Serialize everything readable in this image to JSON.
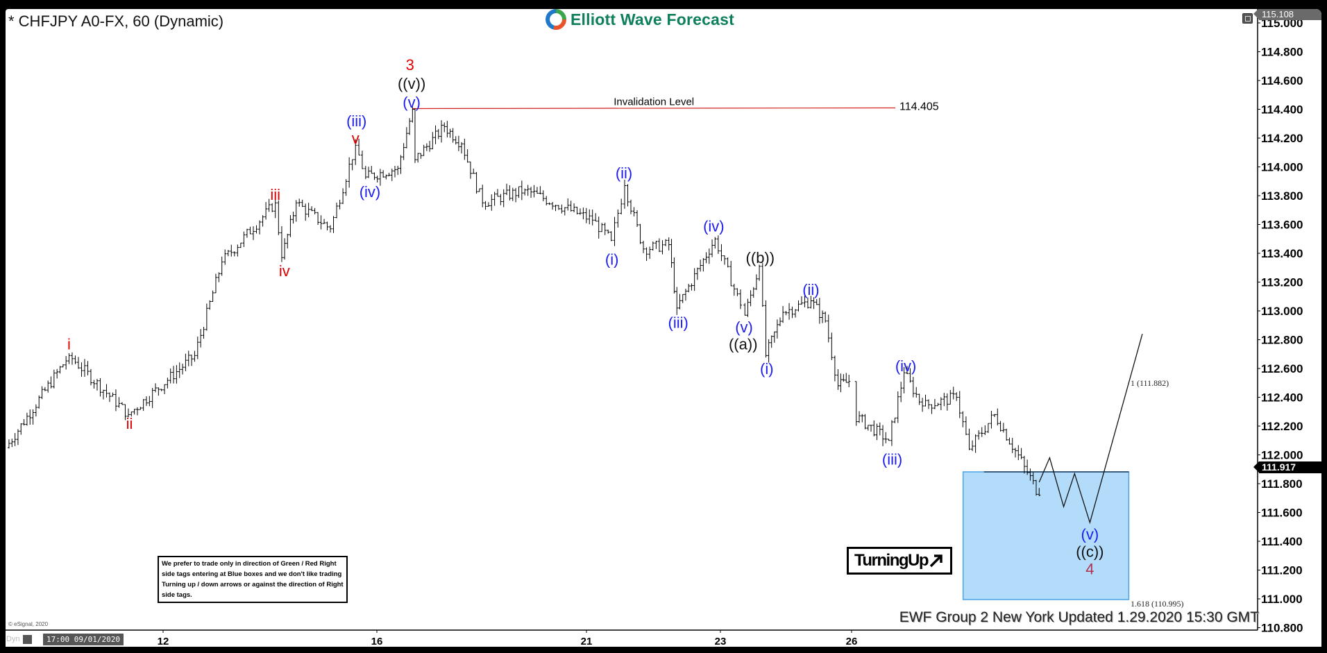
{
  "header": {
    "title": "* CHFJPY A0-FX, 60 (Dynamic)",
    "logo_text": "Elliott Wave Forecast"
  },
  "note": "We prefer to trade only in direction of Green / Red Right side tags entering at Blue boxes and we don't like trading Turning up / down arrows or against the direction of Right side tags.",
  "turning_label": "TurningUp",
  "updated": "EWF Group 2 New York Updated 1.29.2020 15:30 GMT",
  "copyright": "© eSignal, 2020",
  "footer": {
    "dyn": "Dyn",
    "cursor_time": "17:00 09/01/2020"
  },
  "chart_data": {
    "type": "ohlc",
    "symbol": "CHFJPY",
    "interval": "60",
    "ylim": [
      110.8,
      115.0
    ],
    "y_ticks": [
      "115.000",
      "114.800",
      "114.600",
      "114.400",
      "114.200",
      "114.000",
      "113.800",
      "113.600",
      "113.400",
      "113.200",
      "113.000",
      "112.800",
      "112.600",
      "112.400",
      "112.200",
      "112.000",
      "111.800",
      "111.600",
      "111.400",
      "111.200",
      "111.000",
      "110.800"
    ],
    "x_ticks": [
      {
        "label": "12",
        "day": 12
      },
      {
        "label": "16",
        "day": 16
      },
      {
        "label": "21",
        "day": 21
      },
      {
        "label": "23",
        "day": 23
      },
      {
        "label": "26",
        "day": 26
      }
    ],
    "price_path": [
      [
        9.06,
        112.05
      ],
      [
        10.24,
        112.69
      ],
      [
        11.35,
        112.28
      ],
      [
        12.59,
        112.69
      ],
      [
        13.1,
        113.34
      ],
      [
        14.1,
        113.75
      ],
      [
        14.22,
        113.37
      ],
      [
        14.49,
        113.75
      ],
      [
        15.13,
        113.57
      ],
      [
        15.6,
        114.15
      ],
      [
        15.79,
        113.93
      ],
      [
        16.5,
        113.99
      ],
      [
        16.85,
        114.4
      ],
      [
        16.91,
        114.05
      ],
      [
        17.61,
        114.28
      ],
      [
        18.02,
        114.16
      ],
      [
        18.52,
        113.75
      ],
      [
        19.53,
        113.84
      ],
      [
        21.09,
        113.63
      ],
      [
        21.37,
        113.49
      ],
      [
        21.57,
        113.87
      ],
      [
        21.85,
        113.43
      ],
      [
        22.23,
        113.46
      ],
      [
        22.35,
        113.02
      ],
      [
        22.92,
        113.5
      ],
      [
        23.46,
        113.04
      ],
      [
        23.56,
        112.97
      ],
      [
        23.89,
        113.31
      ],
      [
        24.04,
        112.69
      ],
      [
        24.43,
        112.99
      ],
      [
        25.07,
        113.07
      ],
      [
        25.4,
        112.93
      ],
      [
        25.69,
        112.48
      ],
      [
        25.94,
        112.51
      ],
      [
        26.04,
        112.28
      ],
      [
        26.85,
        112.1
      ],
      [
        27.2,
        112.57
      ],
      [
        27.62,
        112.34
      ],
      [
        28.4,
        112.4
      ],
      [
        28.69,
        112.04
      ],
      [
        29.27,
        112.28
      ],
      [
        29.95,
        111.92
      ],
      [
        30.29,
        111.72
      ]
    ],
    "weekend_gap": [
      25.94,
      26.04
    ],
    "projection": [
      [
        30.29,
        111.81
      ],
      [
        30.53,
        111.98
      ],
      [
        30.85,
        111.64
      ],
      [
        31.1,
        111.87
      ],
      [
        31.45,
        111.53
      ],
      [
        32.65,
        112.84
      ]
    ],
    "invalidation": {
      "label": "Invalidation Level",
      "value_label": "114.405",
      "price": 114.405,
      "from_day": 16.85,
      "to_day": 27.0
    },
    "blue_box": {
      "top": 111.882,
      "bottom": 110.995,
      "from_day": 28.55,
      "to_day": 32.34,
      "color": "#b3dcfb",
      "top_label": "1 (111.882)",
      "bottom_label": "1.618 (110.995)"
    },
    "last_price": "111.917",
    "high_tag": "115.108",
    "colors": {
      "red": "#e00000",
      "blue": "#1c1cf0",
      "black": "#111111",
      "darkred": "#b03050",
      "invalidation": "#d42020"
    },
    "wave_labels": [
      {
        "text": "i",
        "day": 10.24,
        "price": 112.77,
        "color": "red"
      },
      {
        "text": "ii",
        "day": 11.37,
        "price": 112.22,
        "color": "red"
      },
      {
        "text": "iii",
        "day": 14.1,
        "price": 113.81,
        "color": "red"
      },
      {
        "text": "iv",
        "day": 14.27,
        "price": 113.28,
        "color": "red"
      },
      {
        "text": "v",
        "day": 15.6,
        "price": 114.2,
        "color": "red"
      },
      {
        "text": "(iii)",
        "day": 15.62,
        "price": 114.32,
        "color": "blue"
      },
      {
        "text": "(iv)",
        "day": 15.87,
        "price": 113.83,
        "color": "blue"
      },
      {
        "text": "(v)",
        "day": 16.83,
        "price": 114.45,
        "color": "blue"
      },
      {
        "text": "((v))",
        "day": 16.83,
        "price": 114.58,
        "color": "black"
      },
      {
        "text": "3",
        "day": 16.79,
        "price": 114.71,
        "color": "red"
      },
      {
        "text": "(i)",
        "day": 21.38,
        "price": 113.36,
        "color": "blue"
      },
      {
        "text": "(ii)",
        "day": 21.56,
        "price": 113.96,
        "color": "blue"
      },
      {
        "text": "(iii)",
        "day": 22.37,
        "price": 112.92,
        "color": "blue"
      },
      {
        "text": "(iv)",
        "day": 22.9,
        "price": 113.59,
        "color": "blue"
      },
      {
        "text": "(v)",
        "day": 23.54,
        "price": 112.89,
        "color": "blue"
      },
      {
        "text": "((a))",
        "day": 23.52,
        "price": 112.77,
        "color": "black"
      },
      {
        "text": "((b))",
        "day": 23.91,
        "price": 113.37,
        "color": "black"
      },
      {
        "text": "(i)",
        "day": 24.06,
        "price": 112.6,
        "color": "blue"
      },
      {
        "text": "(ii)",
        "day": 25.07,
        "price": 113.15,
        "color": "blue"
      },
      {
        "text": "(iii)",
        "day": 26.93,
        "price": 111.97,
        "color": "blue"
      },
      {
        "text": "(iv)",
        "day": 27.24,
        "price": 112.62,
        "color": "blue"
      },
      {
        "text": "(v)",
        "day": 31.45,
        "price": 111.45,
        "color": "blue"
      },
      {
        "text": "((c))",
        "day": 31.45,
        "price": 111.33,
        "color": "black"
      },
      {
        "text": "4",
        "day": 31.45,
        "price": 111.21,
        "color": "darkred"
      }
    ]
  }
}
